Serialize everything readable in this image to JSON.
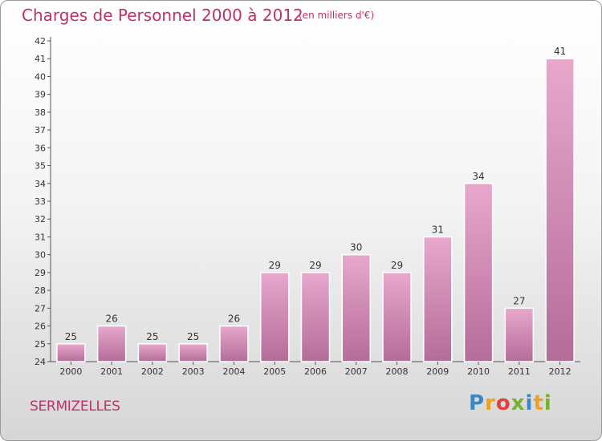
{
  "title": "Charges de Personnel 2000 à 2012",
  "subtitle": "(en milliers d'€)",
  "town": "SERMIZELLES",
  "logo": {
    "letters": [
      "P",
      "r",
      "o",
      "x",
      "i",
      "t",
      "i"
    ],
    "colors": [
      "#3a87c8",
      "#f0a020",
      "#e04040",
      "#7ab030",
      "#3a87c8",
      "#f0a020",
      "#7ab030"
    ]
  },
  "colors": {
    "title": "#c0306a",
    "bar_light": "#e8a8cc",
    "bar_dark": "#b46c98"
  },
  "chart_data": {
    "type": "bar",
    "categories": [
      "2000",
      "2001",
      "2002",
      "2003",
      "2004",
      "2005",
      "2006",
      "2007",
      "2008",
      "2009",
      "2010",
      "2011",
      "2012"
    ],
    "values": [
      25,
      26,
      25,
      25,
      26,
      29,
      29,
      30,
      29,
      31,
      34,
      27,
      41
    ],
    "ylim": [
      24,
      42
    ],
    "yticks": [
      24,
      25,
      26,
      27,
      28,
      29,
      30,
      31,
      32,
      33,
      34,
      35,
      36,
      37,
      38,
      39,
      40,
      41,
      42
    ],
    "grid": false
  }
}
